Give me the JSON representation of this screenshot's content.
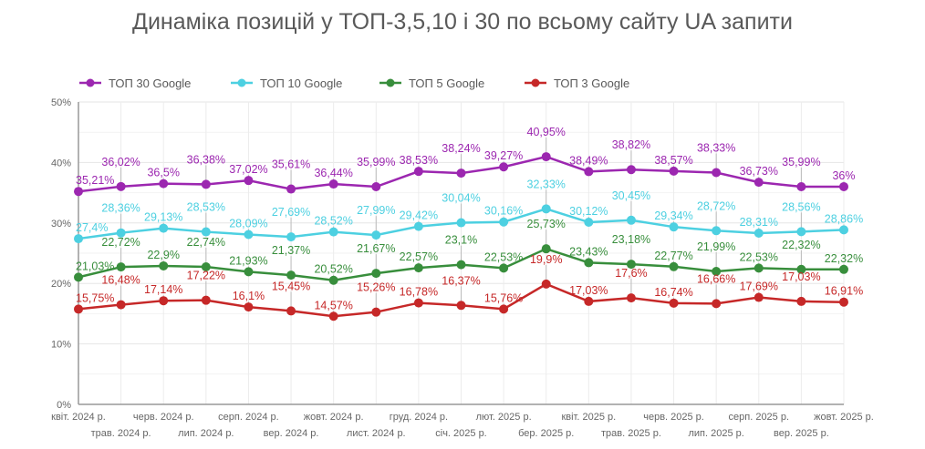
{
  "chart_data": {
    "type": "line",
    "title": "Динаміка позицій у ТОП-3,5,10 і 30 по всьому сайту UA запити",
    "xlabel": "",
    "ylabel": "",
    "ylim": [
      0,
      50
    ],
    "yticks": [
      "0%",
      "10%",
      "20%",
      "30%",
      "40%",
      "50%"
    ],
    "grid": true,
    "legend_position": "top-left",
    "categories": [
      "квіт. 2024 р.",
      "трав. 2024 р.",
      "черв. 2024 р.",
      "лип. 2024 р.",
      "серп. 2024 р.",
      "вер. 2024 р.",
      "жовт. 2024 р.",
      "лист. 2024 р.",
      "груд. 2024 р.",
      "січ. 2025 р.",
      "лют. 2025 р.",
      "бер. 2025 р.",
      "квіт. 2025 р.",
      "трав. 2025 р.",
      "черв. 2025 р.",
      "лип. 2025 р.",
      "серп. 2025 р.",
      "вер. 2025 р.",
      "жовт. 2025 р."
    ],
    "series": [
      {
        "name": "ТОП 30 Google",
        "color": "#9C27B0",
        "values": [
          35.21,
          36.02,
          36.5,
          36.38,
          37.02,
          35.61,
          36.44,
          35.99,
          38.53,
          38.24,
          39.27,
          40.95,
          38.49,
          38.82,
          38.57,
          38.33,
          36.73,
          35.99,
          36
        ],
        "labels": [
          "35,21%",
          "36,02%",
          "36,5%",
          "36,38%",
          "37,02%",
          "35,61%",
          "36,44%",
          "35,99%",
          "38,53%",
          "38,24%",
          "39,27%",
          "40,95%",
          "38,49%",
          "38,82%",
          "38,57%",
          "38,33%",
          "36,73%",
          "35,99%",
          "36%"
        ]
      },
      {
        "name": "ТОП 10 Google",
        "color": "#4DD0E1",
        "values": [
          27.4,
          28.36,
          29.13,
          28.53,
          28.09,
          27.69,
          28.52,
          27.99,
          29.42,
          30.04,
          30.16,
          32.33,
          30.12,
          30.45,
          29.34,
          28.72,
          28.31,
          28.56,
          28.86
        ],
        "labels": [
          "27,4%",
          "28,36%",
          "29,13%",
          "28,53%",
          "28,09%",
          "27,69%",
          "28,52%",
          "27,99%",
          "29,42%",
          "30,04%",
          "30,16%",
          "32,33%",
          "30,12%",
          "30,45%",
          "29,34%",
          "28,72%",
          "28,31%",
          "28,56%",
          "28,86%"
        ]
      },
      {
        "name": "ТОП 5 Google",
        "color": "#388E3C",
        "values": [
          21.03,
          22.72,
          22.9,
          22.74,
          21.93,
          21.37,
          20.52,
          21.67,
          22.57,
          23.1,
          22.53,
          25.73,
          23.43,
          23.18,
          22.77,
          21.99,
          22.53,
          22.32,
          22.32
        ],
        "labels": [
          "21,03%",
          "22,72%",
          "22,9%",
          "22,74%",
          "21,93%",
          "21,37%",
          "20,52%",
          "21,67%",
          "22,57%",
          "23,1%",
          "22,53%",
          "25,73%",
          "23,43%",
          "23,18%",
          "22,77%",
          "21,99%",
          "22,53%",
          "22,32%",
          "22,32%"
        ]
      },
      {
        "name": "ТОП 3 Google",
        "color": "#C62828",
        "values": [
          15.75,
          16.48,
          17.14,
          17.22,
          16.1,
          15.45,
          14.57,
          15.26,
          16.78,
          16.37,
          15.76,
          19.9,
          17.03,
          17.6,
          16.74,
          16.66,
          17.69,
          17.03,
          16.91
        ],
        "labels": [
          "15,75%",
          "16,48%",
          "17,14%",
          "17,22%",
          "16,1%",
          "15,45%",
          "14,57%",
          "15,26%",
          "16,78%",
          "16,37%",
          "15,76%",
          "19,9%",
          "17,03%",
          "17,6%",
          "16,74%",
          "16,66%",
          "17,69%",
          "17,03%",
          "16,91%"
        ]
      }
    ]
  }
}
